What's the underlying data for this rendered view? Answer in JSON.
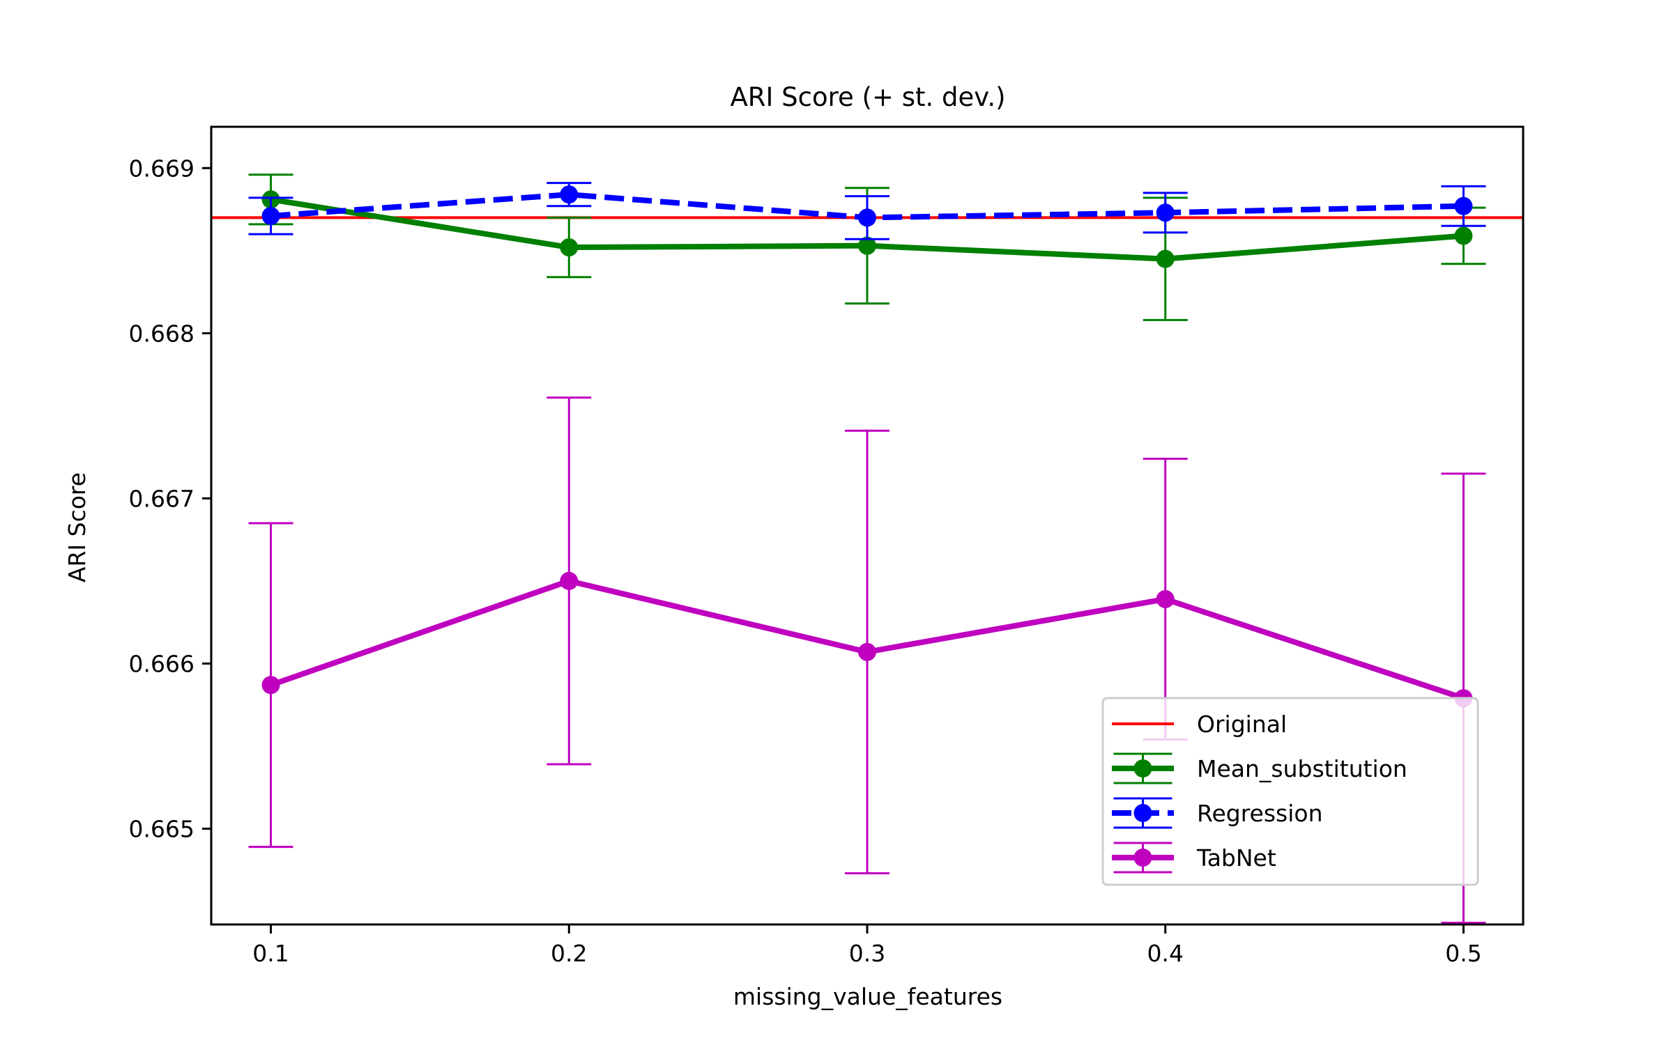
{
  "chart_data": {
    "type": "line",
    "title": "ARI Score (+ st. dev.)",
    "xlabel": "missing_value_features",
    "ylabel": "ARI Score",
    "x": [
      0.1,
      0.2,
      0.3,
      0.4,
      0.5
    ],
    "x_ticks": [
      "0.1",
      "0.2",
      "0.3",
      "0.4",
      "0.5"
    ],
    "y_ticks": [
      "0.665",
      "0.666",
      "0.667",
      "0.668",
      "0.669"
    ],
    "y_tick_values": [
      0.665,
      0.666,
      0.667,
      0.668,
      0.669
    ],
    "xlim": [
      0.08,
      0.52
    ],
    "ylim": [
      0.66442,
      0.66925
    ],
    "grid": false,
    "legend_position": "lower-right",
    "reference_line": {
      "name": "Original",
      "value": 0.6687,
      "color": "#ff0000"
    },
    "series": [
      {
        "name": "Mean_substitution",
        "color": "#008000",
        "linestyle": "solid",
        "values": [
          0.66881,
          0.66852,
          0.66853,
          0.66845,
          0.66859
        ],
        "errors": [
          0.00015,
          0.00018,
          0.00035,
          0.00037,
          0.00017
        ]
      },
      {
        "name": "Regression",
        "color": "#0000ff",
        "linestyle": "dashed",
        "values": [
          0.66871,
          0.66884,
          0.6687,
          0.66873,
          0.66877
        ],
        "errors": [
          0.00011,
          7e-05,
          0.00013,
          0.00012,
          0.00012
        ]
      },
      {
        "name": "TabNet",
        "color": "#bf00bf",
        "linestyle": "solid",
        "values": [
          0.66587,
          0.6665,
          0.66607,
          0.66639,
          0.66579
        ],
        "errors": [
          0.00098,
          0.00111,
          0.00134,
          0.00085,
          0.00136
        ]
      }
    ]
  }
}
